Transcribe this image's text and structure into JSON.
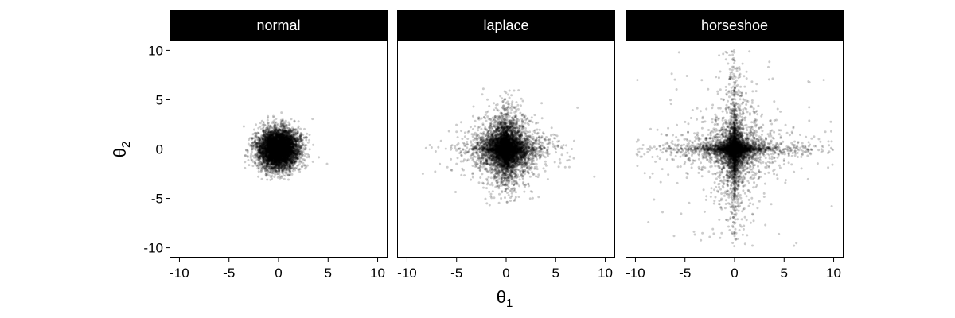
{
  "chart_data": {
    "type": "scatter",
    "xlabel": "θ",
    "xlabel_subscript": "1",
    "ylabel": "θ",
    "ylabel_subscript": "2",
    "xlim": [
      -11,
      11
    ],
    "ylim": [
      -11,
      11
    ],
    "x_ticks": [
      -10,
      -5,
      0,
      5,
      10
    ],
    "y_ticks": [
      -10,
      -5,
      0,
      5,
      10
    ],
    "x_tick_labels": [
      "-10",
      "-5",
      "0",
      "5",
      "10"
    ],
    "y_tick_labels": [
      "-10",
      "-5",
      "0",
      "5",
      "10"
    ],
    "grid": false,
    "point_color": "#000000",
    "point_opacity": 0.2,
    "strip_background": "#000000",
    "strip_text_color": "#ffffff",
    "panels": [
      {
        "title": "normal",
        "n_points": 6000,
        "distribution": "independent normal, sd ≈ 1",
        "visible_range": {
          "x": [
            -3.5,
            4.9
          ],
          "y": [
            -3.3,
            3.7
          ]
        },
        "notable_points": [
          [
            4.9,
            -1.5
          ],
          [
            -3.5,
            2.3
          ],
          [
            0.3,
            3.7
          ]
        ]
      },
      {
        "title": "laplace",
        "n_points": 6000,
        "distribution": "independent laplace, scale ≈ 1",
        "visible_range": {
          "x": [
            -8.5,
            8.9
          ],
          "y": [
            -6.0,
            6.1
          ]
        },
        "notable_points": [
          [
            -8.4,
            -2.5
          ],
          [
            8.9,
            -2.8
          ],
          [
            -7.7,
            0.4
          ],
          [
            7.2,
            4.2
          ],
          [
            -2.3,
            6.1
          ]
        ]
      },
      {
        "title": "horseshoe",
        "n_points": 6000,
        "distribution": "independent horseshoe",
        "visible_range": {
          "x": [
            -10,
            10
          ],
          "y": [
            -10,
            10
          ]
        },
        "notable_points": [
          [
            -9.8,
            7.0
          ],
          [
            -5.6,
            9.8
          ],
          [
            9.0,
            7.0
          ],
          [
            -9.8,
            -1.7
          ],
          [
            6.0,
            -9.8
          ],
          [
            -6.1,
            -8.8
          ],
          [
            9.8,
            -5.8
          ],
          [
            -0.3,
            9.9
          ],
          [
            1.5,
            9.9
          ]
        ]
      }
    ]
  }
}
